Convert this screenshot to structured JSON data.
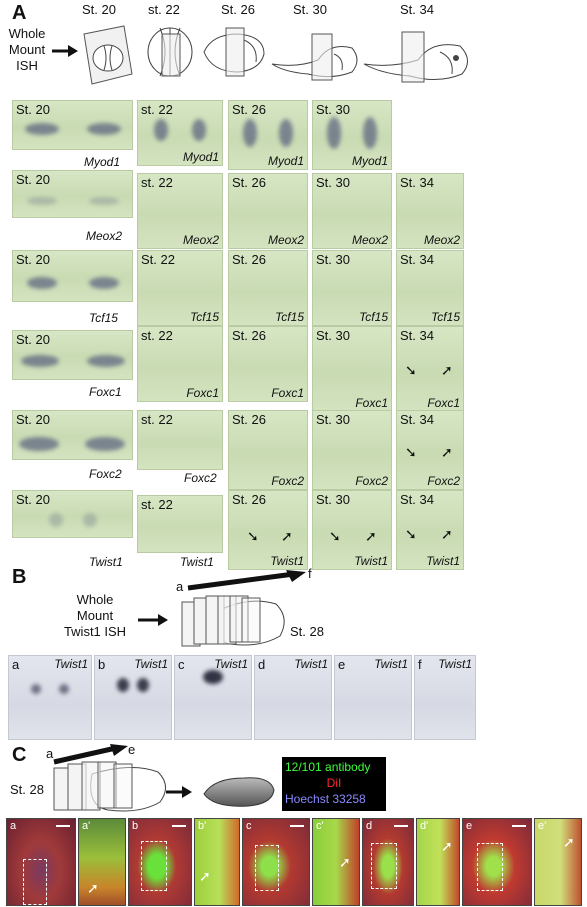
{
  "panel_a": {
    "letter": "A",
    "whole_mount": [
      "Whole",
      "Mount",
      "ISH"
    ],
    "stage_headers": [
      "St. 20",
      "st. 22",
      "St. 26",
      "St. 30",
      "St. 34"
    ],
    "rows": [
      {
        "gene": "Myod1",
        "stages": [
          "St. 20",
          "st. 22",
          "St. 26",
          "St. 30"
        ]
      },
      {
        "gene": "Meox2",
        "stages": [
          "St. 20",
          "st. 22",
          "St. 26",
          "St. 30",
          "St. 34"
        ]
      },
      {
        "gene": "Tcf15",
        "stages": [
          "St. 20",
          "St. 22",
          "St. 26",
          "St. 30",
          "St. 34"
        ]
      },
      {
        "gene": "Foxc1",
        "stages": [
          "St. 20",
          "st. 22",
          "St. 26",
          "St. 30",
          "St. 34"
        ]
      },
      {
        "gene": "Foxc2",
        "stages": [
          "St. 20",
          "st. 22",
          "St. 26",
          "St. 30",
          "St. 34"
        ]
      },
      {
        "gene": "Twist1",
        "stages": [
          "St. 20",
          "st. 22",
          "St. 26",
          "St. 30",
          "St. 34"
        ]
      }
    ]
  },
  "panel_b": {
    "letter": "B",
    "whole_mount": [
      "Whole",
      "Mount",
      "Twist1 ISH"
    ],
    "stage": "St. 28",
    "range_start": "a",
    "range_end": "f",
    "sections": [
      {
        "letter": "a",
        "gene": "Twist1"
      },
      {
        "letter": "b",
        "gene": "Twist1"
      },
      {
        "letter": "c",
        "gene": "Twist1"
      },
      {
        "letter": "d",
        "gene": "Twist1"
      },
      {
        "letter": "e",
        "gene": "Twist1"
      },
      {
        "letter": "f",
        "gene": "Twist1"
      }
    ]
  },
  "panel_c": {
    "letter": "C",
    "stage": "St. 28",
    "range_start": "a",
    "range_end": "e",
    "legend": [
      {
        "label": "12/101 antibody",
        "color": "#3cff3c"
      },
      {
        "label": "DiI",
        "color": "#ff2a2a"
      },
      {
        "label": "Hoechst 33258",
        "color": "#8a8aff"
      }
    ],
    "tiles": [
      "a",
      "a'",
      "b",
      "b'",
      "c",
      "c'",
      "d",
      "d'",
      "e",
      "e'"
    ]
  }
}
